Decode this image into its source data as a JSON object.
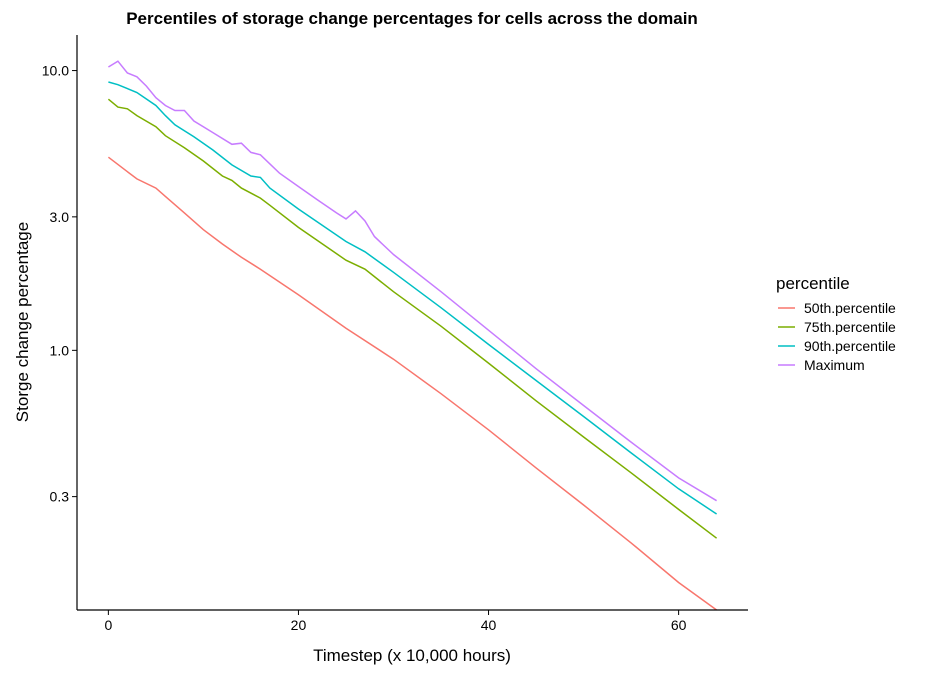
{
  "chart_data": {
    "type": "line",
    "title": "Percentiles of storage change percentages for cells across the domain",
    "xlabel": "Timestep (x 10,000 hours)",
    "ylabel": "Storge change percentage",
    "y_scale": "log",
    "xlim": [
      -3.3,
      67.3
    ],
    "ylim": [
      0.118,
      13.4
    ],
    "x_ticks": [
      0,
      20,
      40,
      60
    ],
    "x_tick_labels": [
      "0",
      "20",
      "40",
      "60"
    ],
    "y_ticks": [
      0.3,
      1.0,
      3.0,
      10.0
    ],
    "y_tick_labels": [
      "0.3",
      "1.0",
      "3.0",
      "10.0"
    ],
    "grid": false,
    "legend_title": "percentile",
    "legend_position": "right",
    "series": [
      {
        "name": "50th.percentile",
        "color": "#F8766D",
        "points": [
          [
            0,
            4.9
          ],
          [
            2,
            4.35
          ],
          [
            3,
            4.1
          ],
          [
            5,
            3.8
          ],
          [
            6,
            3.55
          ],
          [
            8,
            3.1
          ],
          [
            10,
            2.7
          ],
          [
            12,
            2.4
          ],
          [
            14,
            2.15
          ],
          [
            16,
            1.95
          ],
          [
            17,
            1.85
          ],
          [
            20,
            1.58
          ],
          [
            25,
            1.2
          ],
          [
            30,
            0.93
          ],
          [
            35,
            0.7
          ],
          [
            40,
            0.52
          ],
          [
            45,
            0.38
          ],
          [
            50,
            0.28
          ],
          [
            55,
            0.205
          ],
          [
            60,
            0.148
          ],
          [
            64,
            0.118
          ]
        ]
      },
      {
        "name": "75th.percentile",
        "color": "#7CAE00",
        "points": [
          [
            0,
            7.9
          ],
          [
            1,
            7.4
          ],
          [
            2,
            7.3
          ],
          [
            3,
            6.9
          ],
          [
            5,
            6.3
          ],
          [
            6,
            5.85
          ],
          [
            8,
            5.3
          ],
          [
            10,
            4.75
          ],
          [
            12,
            4.2
          ],
          [
            13,
            4.05
          ],
          [
            14,
            3.8
          ],
          [
            16,
            3.5
          ],
          [
            17,
            3.3
          ],
          [
            20,
            2.75
          ],
          [
            25,
            2.1
          ],
          [
            27,
            1.95
          ],
          [
            30,
            1.62
          ],
          [
            35,
            1.22
          ],
          [
            40,
            0.9
          ],
          [
            45,
            0.66
          ],
          [
            50,
            0.49
          ],
          [
            55,
            0.365
          ],
          [
            60,
            0.27
          ],
          [
            64,
            0.213
          ]
        ]
      },
      {
        "name": "90th.percentile",
        "color": "#00BFC4",
        "points": [
          [
            0,
            9.1
          ],
          [
            1,
            8.9
          ],
          [
            3,
            8.35
          ],
          [
            5,
            7.5
          ],
          [
            6,
            6.9
          ],
          [
            7,
            6.4
          ],
          [
            9,
            5.8
          ],
          [
            11,
            5.2
          ],
          [
            13,
            4.6
          ],
          [
            15,
            4.2
          ],
          [
            16,
            4.15
          ],
          [
            17,
            3.8
          ],
          [
            20,
            3.2
          ],
          [
            25,
            2.45
          ],
          [
            27,
            2.25
          ],
          [
            30,
            1.9
          ],
          [
            35,
            1.42
          ],
          [
            40,
            1.05
          ],
          [
            45,
            0.78
          ],
          [
            50,
            0.58
          ],
          [
            55,
            0.43
          ],
          [
            60,
            0.32
          ],
          [
            64,
            0.26
          ]
        ]
      },
      {
        "name": "Maximum",
        "color": "#C77CFF",
        "points": [
          [
            0,
            10.3
          ],
          [
            1,
            10.8
          ],
          [
            2,
            9.8
          ],
          [
            3,
            9.5
          ],
          [
            4,
            8.8
          ],
          [
            5,
            8.0
          ],
          [
            6,
            7.5
          ],
          [
            7,
            7.2
          ],
          [
            8,
            7.2
          ],
          [
            9,
            6.6
          ],
          [
            11,
            6.0
          ],
          [
            13,
            5.45
          ],
          [
            14,
            5.5
          ],
          [
            15,
            5.1
          ],
          [
            16,
            5.0
          ],
          [
            18,
            4.3
          ],
          [
            20,
            3.85
          ],
          [
            22,
            3.45
          ],
          [
            24,
            3.1
          ],
          [
            25,
            2.95
          ],
          [
            26,
            3.15
          ],
          [
            27,
            2.9
          ],
          [
            28,
            2.55
          ],
          [
            30,
            2.2
          ],
          [
            35,
            1.62
          ],
          [
            40,
            1.18
          ],
          [
            45,
            0.86
          ],
          [
            50,
            0.635
          ],
          [
            55,
            0.47
          ],
          [
            60,
            0.35
          ],
          [
            64,
            0.29
          ]
        ]
      }
    ]
  }
}
